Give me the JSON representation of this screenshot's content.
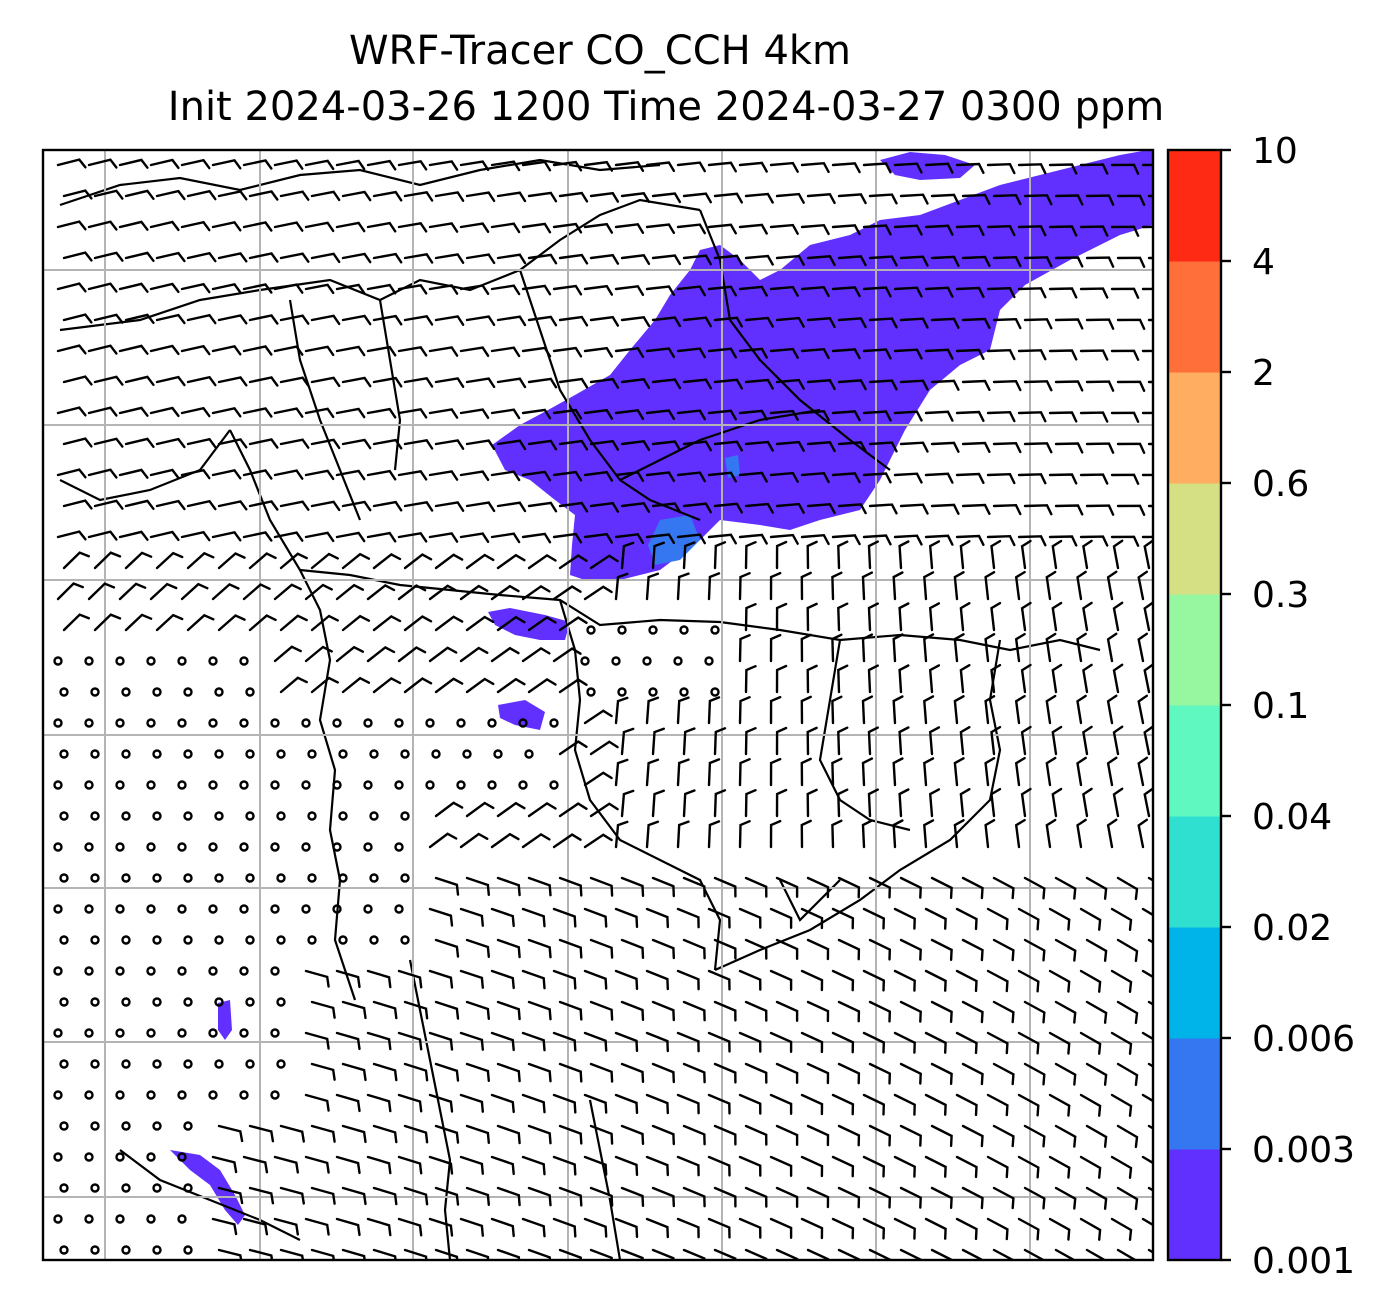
{
  "title": {
    "line1": "WRF-Tracer CO_CCH 4km",
    "line2": "Init 2024-03-26 1200 Time 2024-03-27 0300 ppm"
  },
  "colorbar": {
    "levels": [
      "0.001",
      "0.003",
      "0.006",
      "0.02",
      "0.04",
      "0.1",
      "0.3",
      "0.6",
      "2",
      "4",
      "10"
    ],
    "colors": [
      "#6130ff",
      "#3477f0",
      "#00b3e8",
      "#2fe0d0",
      "#5ff8c0",
      "#96f7a0",
      "#d4e083",
      "#ffad60",
      "#ff6f3a",
      "#ff2a14"
    ]
  },
  "map": {
    "plume_color": "#6130ff",
    "plume_core_color": "#3477f0",
    "gridline_color": "#b4b4b4",
    "wind_barb_color": "#000000"
  }
}
